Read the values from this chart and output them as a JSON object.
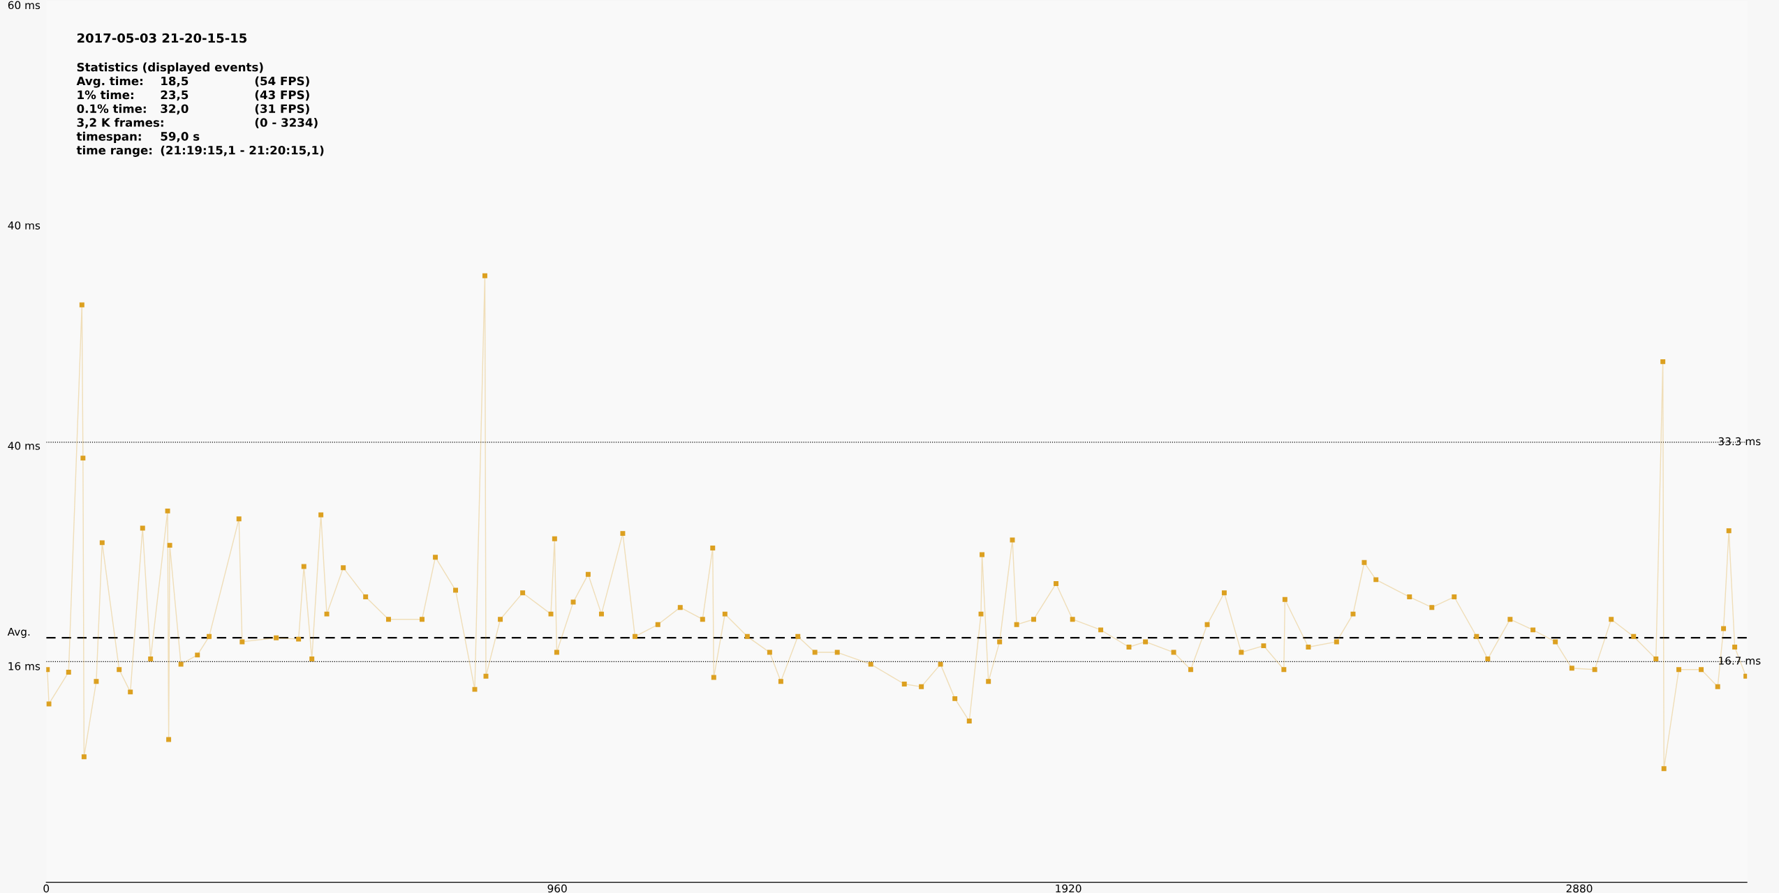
{
  "chart_data": {
    "type": "line",
    "subtitle": "2017-05-03 21-20-15-15",
    "annotations": [
      "Statistics (displayed events)",
      "Avg. time:\t18,5\t(54 FPS)",
      "1% time:\t23,5\t(43 FPS)",
      "0.1% time:\t32,0\t(31 FPS)",
      "3,2 K frames:\t\t(0 - 3234)",
      "timespan:\t59,0 s",
      "time range:\t(21:19:15,1 - 21:20:15,1)",
      "16 ms",
      "40 ms",
      "40 ms",
      "60 ms"
    ],
    "marker": "square",
    "line_style": "solid",
    "grid": false,
    "legend": false,
    "xlim": [
      0,
      3195
    ],
    "xticks": [
      0,
      960,
      1920,
      2880
    ],
    "ylim": [
      0,
      66.7
    ],
    "ref_lines": [
      {
        "axis": "y",
        "value": 33.3,
        "label": "33.3 ms",
        "line_style": "dotted",
        "color": "#000000"
      },
      {
        "axis": "y",
        "value": 16.7,
        "label": "16.7 ms",
        "line_style": "dotted",
        "color": "#000000"
      },
      {
        "axis": "y",
        "value": 18.5,
        "label": "Avg.",
        "line_style": "dashed",
        "color": "#000000"
      }
    ],
    "series": [
      {
        "color": "#dca020",
        "x": [
          2,
          5,
          42,
          67,
          69,
          71,
          94,
          105,
          137,
          158,
          181,
          196,
          228,
          230,
          232,
          253,
          284,
          306,
          362,
          368,
          432,
          474,
          484,
          499,
          516,
          527,
          558,
          600,
          643,
          706,
          731,
          769,
          805,
          824,
          826,
          853,
          895,
          948,
          955,
          959,
          990,
          1018,
          1043,
          1083,
          1106,
          1149,
          1191,
          1233,
          1252,
          1254,
          1275,
          1317,
          1359,
          1380,
          1412,
          1444,
          1486,
          1549,
          1612,
          1644,
          1680,
          1707,
          1734,
          1756,
          1758,
          1770,
          1791,
          1815,
          1823,
          1855,
          1897,
          1928,
          1981,
          2034,
          2065,
          2118,
          2150,
          2181,
          2213,
          2245,
          2287,
          2325,
          2327,
          2371,
          2424,
          2455,
          2476,
          2498,
          2561,
          2603,
          2645,
          2687,
          2708,
          2750,
          2793,
          2835,
          2866,
          2909,
          2940,
          2982,
          3024,
          3037,
          3039,
          3067,
          3109,
          3140,
          3151,
          3161,
          3172,
          3193
        ],
        "values": [
          16.1,
          13.5,
          15.9,
          43.7,
          32.1,
          9.5,
          15.2,
          25.7,
          16.1,
          14.4,
          26.8,
          16.9,
          28.1,
          10.8,
          25.5,
          16.5,
          17.2,
          18.6,
          27.5,
          18.2,
          18.5,
          18.4,
          23.9,
          16.9,
          27.8,
          20.3,
          23.8,
          21.6,
          19.9,
          19.9,
          24.6,
          22.1,
          14.6,
          45.9,
          15.6,
          19.9,
          21.9,
          20.3,
          26.0,
          17.4,
          21.2,
          23.3,
          20.3,
          26.4,
          18.6,
          19.5,
          20.8,
          19.9,
          25.3,
          15.5,
          20.3,
          18.6,
          17.4,
          15.2,
          18.6,
          17.4,
          17.4,
          16.5,
          15.0,
          14.8,
          16.5,
          13.9,
          12.2,
          20.3,
          24.8,
          15.2,
          18.2,
          25.9,
          19.5,
          19.9,
          22.6,
          19.9,
          19.1,
          17.8,
          18.2,
          17.4,
          16.1,
          19.5,
          21.9,
          17.4,
          17.9,
          16.1,
          21.4,
          17.8,
          18.2,
          20.3,
          24.2,
          22.9,
          21.6,
          20.8,
          21.6,
          18.6,
          16.9,
          19.9,
          19.1,
          18.2,
          16.2,
          16.1,
          19.9,
          18.6,
          16.9,
          39.4,
          8.6,
          16.1,
          16.1,
          14.8,
          19.2,
          26.6,
          17.8,
          15.6
        ]
      }
    ]
  }
}
